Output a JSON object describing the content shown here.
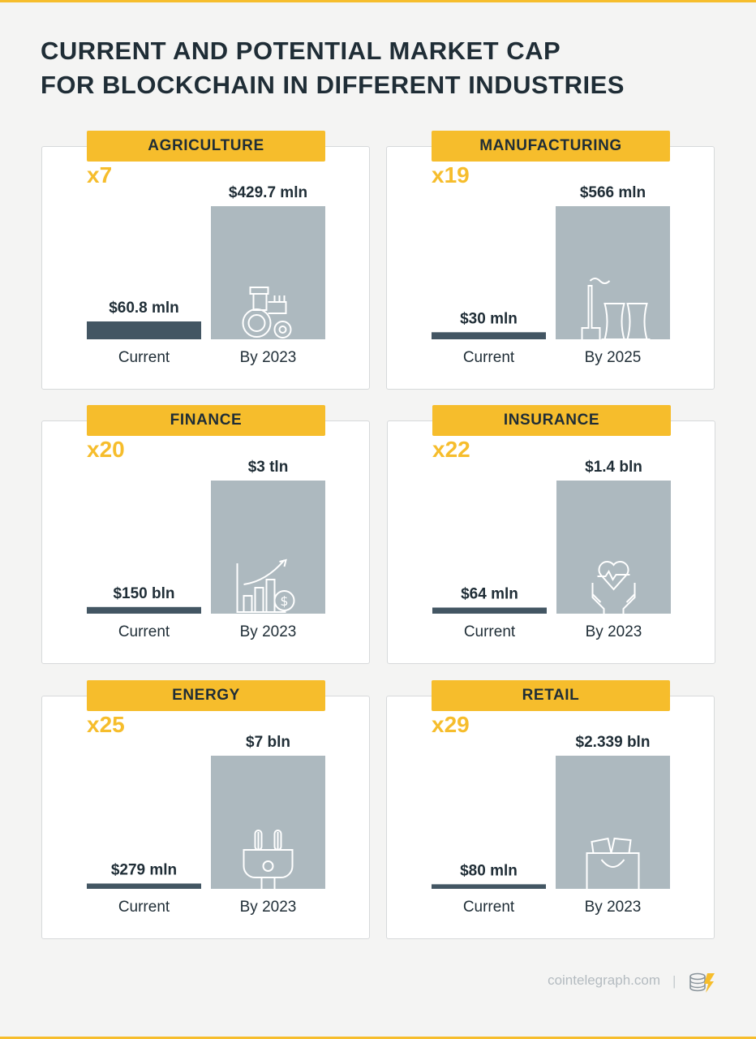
{
  "title": {
    "line1": "CURRENT AND POTENTIAL MARKET CAP",
    "line2": "FOR BLOCKCHAIN IN DIFFERENT INDUSTRIES"
  },
  "colors": {
    "accent": "#f6bd2c",
    "current_bar": "#435663",
    "potential_bar": "#adb9bf",
    "text_dark": "#1f2d36"
  },
  "chart_data": [
    {
      "type": "bar",
      "title": "AGRICULTURE",
      "multiplier": "x7",
      "icon": "tractor-icon",
      "categories": [
        "Current",
        "By 2023"
      ],
      "values": [
        60.8,
        429.7
      ],
      "value_labels": [
        "$60.8 mln",
        "$429.7 mln"
      ],
      "unit": "mln USD"
    },
    {
      "type": "bar",
      "title": "MANUFACTURING",
      "multiplier": "x19",
      "icon": "factory-icon",
      "categories": [
        "Current",
        "By 2025"
      ],
      "values": [
        30,
        566
      ],
      "value_labels": [
        "$30 mln",
        "$566 mln"
      ],
      "unit": "mln USD"
    },
    {
      "type": "bar",
      "title": "FINANCE",
      "multiplier": "x20",
      "icon": "growth-chart-icon",
      "categories": [
        "Current",
        "By 2023"
      ],
      "values": [
        150,
        3000
      ],
      "value_labels": [
        "$150 bln",
        "$3 tln"
      ],
      "unit": "bln USD"
    },
    {
      "type": "bar",
      "title": "INSURANCE",
      "multiplier": "x22",
      "icon": "heart-hands-icon",
      "categories": [
        "Current",
        "By 2023"
      ],
      "values": [
        64,
        1400
      ],
      "value_labels": [
        "$64 mln",
        "$1.4 bln"
      ],
      "unit": "mln USD"
    },
    {
      "type": "bar",
      "title": "ENERGY",
      "multiplier": "x25",
      "icon": "plug-icon",
      "categories": [
        "Current",
        "By 2023"
      ],
      "values": [
        279,
        7000
      ],
      "value_labels": [
        "$279 mln",
        "$7 bln"
      ],
      "unit": "mln USD"
    },
    {
      "type": "bar",
      "title": "RETAIL",
      "multiplier": "x29",
      "icon": "shopping-bag-icon",
      "categories": [
        "Current",
        "By 2023"
      ],
      "values": [
        80,
        2339
      ],
      "value_labels": [
        "$80 mln",
        "$2.339 bln"
      ],
      "unit": "mln USD"
    }
  ],
  "footer": {
    "source": "cointelegraph.com",
    "separator": "|",
    "logo_icon": "cointelegraph-logo-icon"
  }
}
